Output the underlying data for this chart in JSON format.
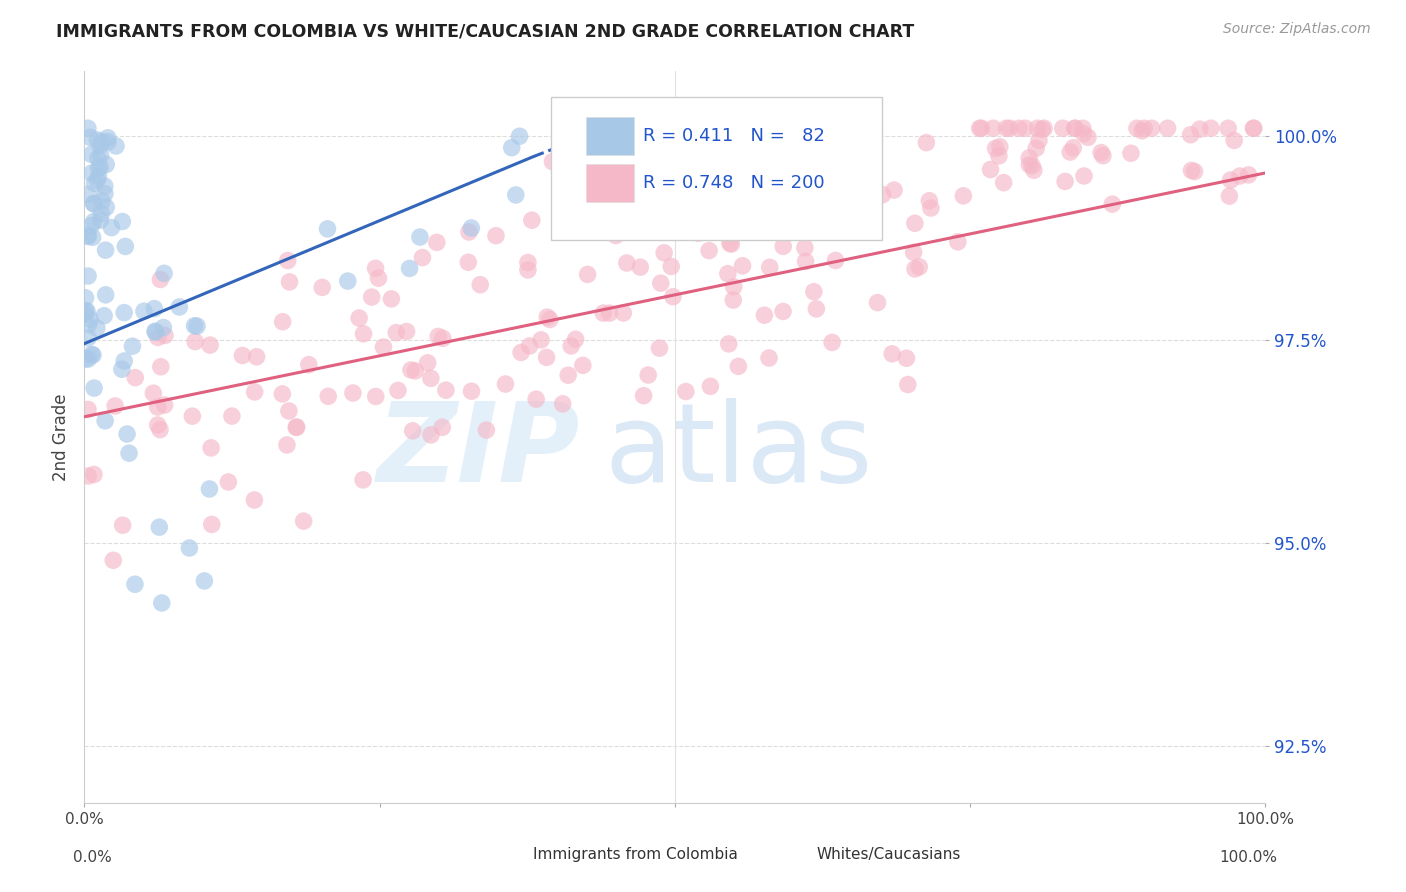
{
  "title": "IMMIGRANTS FROM COLOMBIA VS WHITE/CAUCASIAN 2ND GRADE CORRELATION CHART",
  "source": "Source: ZipAtlas.com",
  "ylabel": "2nd Grade",
  "xlim": [
    0.0,
    1.0
  ],
  "ylim": [
    0.918,
    1.008
  ],
  "yticks": [
    0.925,
    0.95,
    0.975,
    1.0
  ],
  "ytick_labels": [
    "92.5%",
    "95.0%",
    "97.5%",
    "100.0%"
  ],
  "blue_R": "0.411",
  "blue_N": "82",
  "pink_R": "0.748",
  "pink_N": "200",
  "blue_color": "#a8c8e8",
  "pink_color": "#f5b8c8",
  "blue_line_color": "#3366bb",
  "pink_line_color": "#e06080",
  "legend_text_color": "#2255cc",
  "grid_color": "#dddddd",
  "background": "#ffffff",
  "blue_trend_x0": 0.0,
  "blue_trend_y0": 0.9745,
  "blue_trend_x1": 0.38,
  "blue_trend_y1": 0.9975,
  "blue_trend_x2": 0.46,
  "blue_trend_y2": 1.002,
  "pink_trend_x0": 0.0,
  "pink_trend_y0": 0.9655,
  "pink_trend_x1": 1.0,
  "pink_trend_y1": 0.9955
}
